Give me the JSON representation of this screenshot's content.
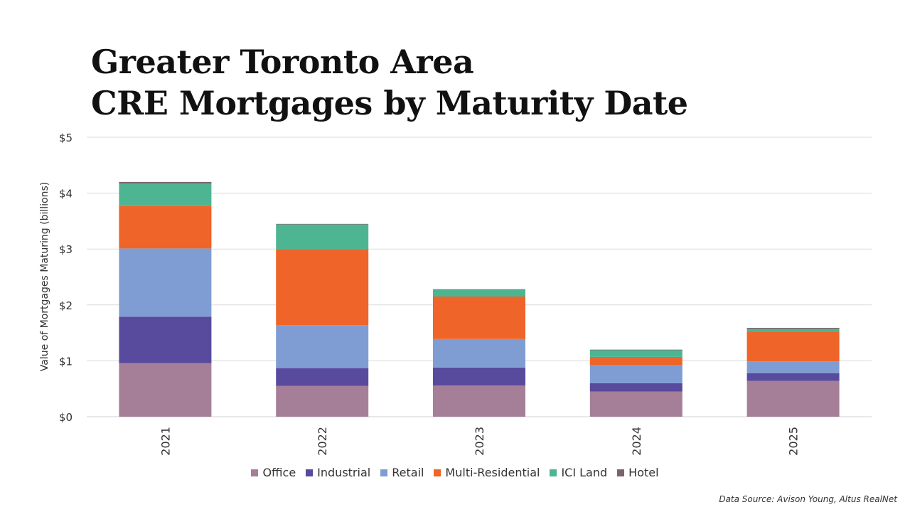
{
  "title": {
    "line1": "Greater Toronto Area",
    "line2": "CRE Mortgages by Maturity Date"
  },
  "source": "Data Source: Avison Young, Altus RealNet",
  "chart_data": {
    "type": "bar",
    "stacked": true,
    "categories": [
      "2021",
      "2022",
      "2023",
      "2024",
      "2025"
    ],
    "ylabel": "Value of Mortgages Maturing (billions)",
    "ylim": [
      0,
      5
    ],
    "yticks": [
      "$0",
      "$1",
      "$2",
      "$3",
      "$4",
      "$5"
    ],
    "grid": true,
    "legend_position": "bottom",
    "series": [
      {
        "name": "Office",
        "color": "#a57f97",
        "values": [
          0.96,
          0.55,
          0.56,
          0.45,
          0.64
        ]
      },
      {
        "name": "Industrial",
        "color": "#584a9c",
        "values": [
          0.83,
          0.32,
          0.32,
          0.15,
          0.14
        ]
      },
      {
        "name": "Retail",
        "color": "#7f9dd3",
        "values": [
          1.22,
          0.77,
          0.51,
          0.32,
          0.21
        ]
      },
      {
        "name": "Multi-Residential",
        "color": "#ef6428",
        "values": [
          0.76,
          1.35,
          0.76,
          0.15,
          0.53
        ]
      },
      {
        "name": "ICI Land",
        "color": "#4db592",
        "values": [
          0.4,
          0.45,
          0.12,
          0.12,
          0.05
        ]
      },
      {
        "name": "Hotel",
        "color": "#7a6468",
        "values": [
          0.03,
          0.01,
          0.01,
          0.01,
          0.02
        ]
      }
    ]
  }
}
